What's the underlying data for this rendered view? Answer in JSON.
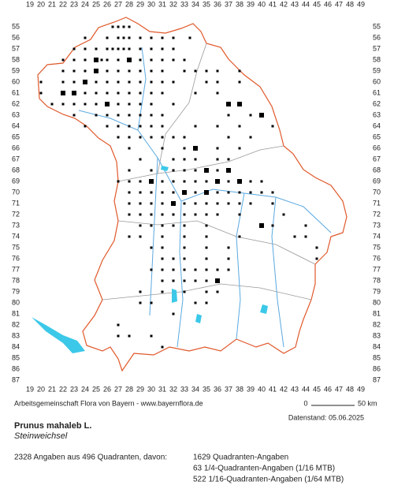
{
  "grid": {
    "columns": [
      19,
      20,
      21,
      22,
      23,
      24,
      25,
      26,
      27,
      28,
      29,
      30,
      31,
      32,
      33,
      34,
      35,
      36,
      37,
      38,
      39,
      40,
      41,
      42,
      43,
      44,
      45,
      46,
      47,
      48,
      49
    ],
    "rows": [
      55,
      56,
      57,
      58,
      59,
      60,
      61,
      62,
      63,
      64,
      65,
      66,
      67,
      68,
      69,
      70,
      71,
      72,
      73,
      74,
      75,
      76,
      77,
      78,
      79,
      80,
      81,
      82,
      83,
      84,
      85,
      86,
      87
    ]
  },
  "markers": {
    "rows": [
      [
        55,
        [
          26.5,
          27,
          27.5,
          28
        ]
      ],
      [
        56,
        [
          24,
          26,
          27,
          27.5,
          28,
          29,
          30,
          31,
          32,
          33.5
        ]
      ],
      [
        57,
        [
          23,
          24,
          25,
          26,
          26.5,
          27,
          27.5,
          28,
          29,
          30,
          31,
          32
        ]
      ],
      [
        58,
        [
          22,
          23,
          24,
          25,
          25.5,
          26,
          27,
          28,
          29,
          30,
          31,
          32,
          33
        ]
      ],
      [
        59,
        [
          22,
          23,
          24,
          25,
          26,
          27,
          28,
          29,
          30,
          31,
          33,
          34,
          35,
          36,
          38
        ]
      ],
      [
        60,
        [
          20,
          22,
          23,
          24,
          25,
          26,
          27,
          28,
          29,
          30,
          31,
          32,
          35,
          36,
          38
        ]
      ],
      [
        61,
        [
          20,
          22,
          23,
          24,
          25,
          26,
          27,
          28,
          29,
          30,
          31,
          34,
          36
        ]
      ],
      [
        62,
        [
          21,
          22,
          23,
          24,
          25,
          26,
          27,
          28,
          29,
          30,
          32,
          37,
          38
        ]
      ],
      [
        63,
        [
          23,
          25,
          26,
          27,
          28,
          29,
          30,
          31,
          37,
          39
        ]
      ],
      [
        64,
        [
          24,
          26,
          27,
          28,
          29,
          30,
          31,
          34,
          36,
          38,
          41
        ]
      ],
      [
        65,
        [
          27,
          28,
          29,
          30,
          31,
          32,
          33,
          37,
          39
        ]
      ],
      [
        66,
        [
          28,
          31,
          33,
          36,
          38
        ]
      ],
      [
        67,
        [
          29,
          32,
          33,
          34,
          36,
          37
        ]
      ],
      [
        68,
        [
          28,
          30,
          32,
          33,
          34,
          35,
          36,
          37
        ]
      ],
      [
        69,
        [
          27,
          28,
          29,
          30,
          31,
          32,
          33,
          34,
          35,
          36,
          37,
          38,
          39,
          40
        ]
      ],
      [
        70,
        [
          28,
          29,
          30,
          31,
          32,
          33,
          34,
          35,
          36,
          37,
          38,
          39,
          40,
          41
        ]
      ],
      [
        71,
        [
          28,
          29,
          30,
          31,
          32,
          33,
          34,
          35,
          36,
          37,
          38,
          39,
          41
        ]
      ],
      [
        72,
        [
          28,
          29,
          30,
          31,
          32,
          33,
          34,
          35,
          36,
          38,
          42
        ]
      ],
      [
        73,
        [
          29,
          30,
          31,
          32,
          33,
          35,
          40,
          41,
          44
        ]
      ],
      [
        74,
        [
          28,
          29,
          31,
          33,
          35,
          38,
          43,
          44
        ]
      ],
      [
        75,
        [
          30,
          31,
          33,
          35,
          37,
          45
        ]
      ],
      [
        76,
        [
          31,
          32,
          33,
          35,
          37,
          45
        ]
      ],
      [
        77,
        [
          30,
          31,
          32,
          33,
          34,
          35,
          36,
          37
        ]
      ],
      [
        78,
        [
          31,
          32,
          33,
          34,
          35,
          36
        ]
      ],
      [
        79,
        [
          29,
          31,
          33,
          35,
          36
        ]
      ],
      [
        80,
        [
          29,
          30,
          34,
          35
        ]
      ],
      [
        81,
        [
          32
        ]
      ],
      [
        82,
        [
          27
        ]
      ],
      [
        83,
        [
          27,
          28,
          30
        ]
      ],
      [
        84,
        [
          31
        ]
      ]
    ],
    "large": [
      [
        25,
        58
      ],
      [
        28,
        58
      ],
      [
        24,
        60
      ],
      [
        23,
        61
      ],
      [
        22,
        61
      ],
      [
        26,
        62
      ],
      [
        37,
        62
      ],
      [
        38,
        62
      ],
      [
        40,
        63
      ],
      [
        34,
        66
      ],
      [
        35,
        68
      ],
      [
        37,
        68
      ],
      [
        33,
        70
      ],
      [
        35,
        70
      ],
      [
        36,
        69
      ],
      [
        38,
        69
      ],
      [
        30,
        69
      ],
      [
        32,
        71
      ],
      [
        36,
        78
      ],
      [
        40,
        73
      ],
      [
        25,
        59
      ]
    ]
  },
  "footer": {
    "credit": "Arbeitsgemeinschaft Flora von Bayern - www.bayernflora.de",
    "scale_start": "0",
    "scale_end": "50 km",
    "date": "Datenstand: 05.06.2025"
  },
  "species": {
    "name": "Prunus mahaleb L.",
    "common_name": "Steinweichsel"
  },
  "summary": {
    "total": "2328 Angaben aus 496 Quadranten, davon:",
    "lines": [
      "1629 Quadranten-Angaben",
      "63 1/4-Quadranten-Angaben (1/16 MTB)",
      "522 1/16-Quadranten-Angaben (1/64 MTB)"
    ]
  }
}
